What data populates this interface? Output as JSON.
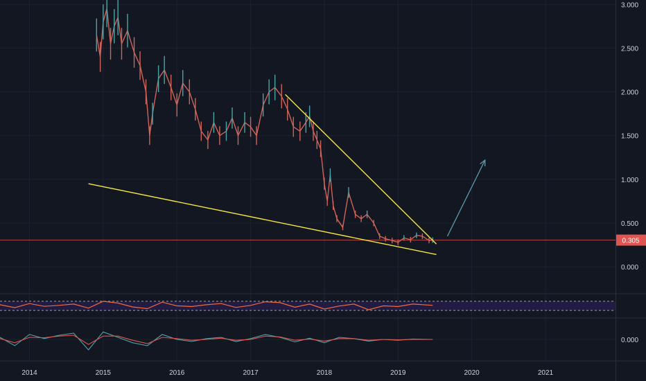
{
  "colors": {
    "background": "#131722",
    "grid": "#1e2230",
    "axis_text": "#d1d4dc",
    "candle_up": "#4fa3a5",
    "candle_down": "#d0645a",
    "trendline": "#f5e642",
    "projection_arrow": "#5b9aa8",
    "price_line": "#e05550",
    "rsi_line": "#f26b3a",
    "rsi_band": "#2a2050",
    "macd_line": "#4fa3a5",
    "signal_line": "#e05550"
  },
  "current_price": {
    "value": 0.305,
    "label": "0.305"
  },
  "chart_data": [
    {
      "type": "line",
      "title": "",
      "x_ticks": [
        "2014",
        "2015",
        "2016",
        "2017",
        "2018",
        "2019",
        "2020",
        "2021"
      ],
      "y_ticks": [
        "3.000",
        "2.500",
        "2.000",
        "1.500",
        "1.000",
        "0.500",
        "0.000"
      ],
      "ylim": [
        -0.3,
        3.05
      ],
      "xlim": [
        2013.6,
        2021.95
      ],
      "grid": true,
      "series": [
        {
          "x": [
            2014.91,
            2014.96,
            2015.0,
            2015.05,
            2015.1,
            2015.15,
            2015.2,
            2015.25,
            2015.33,
            2015.42,
            2015.5,
            2015.58,
            2015.63,
            2015.67,
            2015.75,
            2015.83,
            2015.92,
            2016.0,
            2016.08,
            2016.17,
            2016.25,
            2016.33,
            2016.42,
            2016.5,
            2016.58,
            2016.67,
            2016.75,
            2016.83,
            2016.92,
            2017.0,
            2017.08,
            2017.17,
            2017.25,
            2017.33,
            2017.42,
            2017.5,
            2017.58,
            2017.67,
            2017.75,
            2017.8,
            2017.85,
            2017.9,
            2017.95,
            2018.0,
            2018.04,
            2018.08,
            2018.12,
            2018.17,
            2018.25,
            2018.33,
            2018.42,
            2018.5,
            2018.58,
            2018.67,
            2018.75,
            2018.83,
            2018.92,
            2019.0,
            2019.08,
            2019.17,
            2019.25,
            2019.33,
            2019.42,
            2019.47
          ],
          "y": [
            2.65,
            2.4,
            2.8,
            2.95,
            2.55,
            2.75,
            2.85,
            2.55,
            2.7,
            2.45,
            2.3,
            2.0,
            1.5,
            1.75,
            2.15,
            2.25,
            2.05,
            1.85,
            2.1,
            2.0,
            1.8,
            1.55,
            1.45,
            1.65,
            1.5,
            1.55,
            1.7,
            1.5,
            1.65,
            1.6,
            1.5,
            1.85,
            2.0,
            2.05,
            1.95,
            1.8,
            1.6,
            1.55,
            1.65,
            1.72,
            1.55,
            1.45,
            1.35,
            0.95,
            0.75,
            1.05,
            0.7,
            0.55,
            0.45,
            0.85,
            0.6,
            0.55,
            0.6,
            0.5,
            0.35,
            0.32,
            0.3,
            0.28,
            0.33,
            0.31,
            0.36,
            0.35,
            0.3,
            0.305
          ]
        }
      ],
      "annotations": [
        {
          "type": "trendline",
          "points": [
            [
              2017.47,
              1.97
            ],
            [
              2019.52,
              0.26
            ]
          ]
        },
        {
          "type": "trendline",
          "points": [
            [
              2014.8,
              0.95
            ],
            [
              2019.52,
              0.14
            ]
          ]
        },
        {
          "type": "arrow",
          "points": [
            [
              2019.67,
              0.35
            ],
            [
              2020.18,
              1.22
            ]
          ]
        }
      ]
    },
    {
      "type": "line",
      "title": "",
      "x_ticks": [],
      "y_ticks": [],
      "ylim": [
        0,
        100
      ],
      "band": [
        30,
        70
      ],
      "series": [
        {
          "x": [
            2013.6,
            2013.8,
            2014.0,
            2014.2,
            2014.4,
            2014.6,
            2014.8,
            2015.0,
            2015.2,
            2015.4,
            2015.6,
            2015.8,
            2016.0,
            2016.2,
            2016.4,
            2016.6,
            2016.8,
            2017.0,
            2017.2,
            2017.4,
            2017.6,
            2017.8,
            2018.0,
            2018.2,
            2018.4,
            2018.6,
            2018.8,
            2019.0,
            2019.2,
            2019.47
          ],
          "y": [
            55,
            42,
            60,
            48,
            52,
            58,
            40,
            70,
            62,
            45,
            38,
            66,
            50,
            47,
            55,
            60,
            43,
            52,
            68,
            64,
            44,
            58,
            36,
            49,
            58,
            33,
            50,
            47,
            58,
            52
          ]
        }
      ]
    },
    {
      "type": "line",
      "title": "",
      "x_ticks": [],
      "y_ticks": [
        "0.000"
      ],
      "ylim": [
        -0.5,
        0.5
      ],
      "series": [
        {
          "x": [
            2013.6,
            2013.8,
            2014.0,
            2014.2,
            2014.4,
            2014.6,
            2014.8,
            2015.0,
            2015.2,
            2015.4,
            2015.6,
            2015.8,
            2016.0,
            2016.2,
            2016.4,
            2016.6,
            2016.8,
            2017.0,
            2017.2,
            2017.4,
            2017.6,
            2017.8,
            2018.0,
            2018.2,
            2018.4,
            2018.6,
            2018.8,
            2019.0,
            2019.2,
            2019.47
          ],
          "y": [
            0.05,
            -0.15,
            0.12,
            0.02,
            0.1,
            0.15,
            -0.25,
            0.18,
            0.05,
            -0.08,
            -0.15,
            0.12,
            0.0,
            -0.05,
            0.02,
            0.05,
            -0.05,
            0.02,
            0.12,
            0.05,
            -0.06,
            0.03,
            -0.08,
            0.05,
            0.02,
            -0.04,
            0.0,
            -0.02,
            0.01,
            0.0
          ]
        },
        {
          "x": [
            2013.6,
            2013.8,
            2014.0,
            2014.2,
            2014.4,
            2014.6,
            2014.8,
            2015.0,
            2015.2,
            2015.4,
            2015.6,
            2015.8,
            2016.0,
            2016.2,
            2016.4,
            2016.6,
            2016.8,
            2017.0,
            2017.2,
            2017.4,
            2017.6,
            2017.8,
            2018.0,
            2018.2,
            2018.4,
            2018.6,
            2018.8,
            2019.0,
            2019.2,
            2019.47
          ],
          "y": [
            0.02,
            -0.08,
            0.05,
            0.04,
            0.08,
            0.1,
            -0.12,
            0.08,
            0.08,
            -0.02,
            -0.1,
            0.05,
            0.02,
            -0.02,
            0.0,
            0.03,
            -0.02,
            0.0,
            0.08,
            0.06,
            -0.02,
            0.01,
            -0.04,
            0.02,
            0.02,
            -0.02,
            0.0,
            -0.01,
            0.0,
            0.0
          ]
        }
      ]
    }
  ]
}
